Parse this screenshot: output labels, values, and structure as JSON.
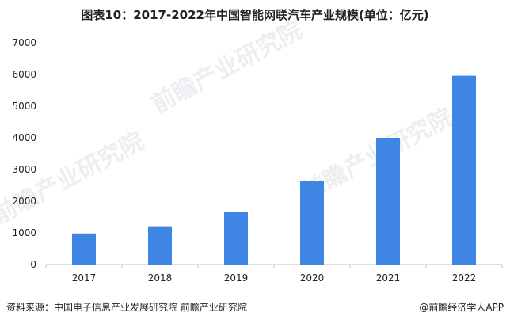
{
  "chart_data": {
    "type": "bar",
    "title": "图表10：2017-2022年中国智能网联汽车产业规模(单位：亿元)",
    "categories": [
      "2017",
      "2018",
      "2019",
      "2020",
      "2021",
      "2022"
    ],
    "values": [
      980,
      1210,
      1670,
      2630,
      4000,
      5960
    ],
    "ylim": [
      0,
      7000
    ],
    "yticks": [
      0,
      1000,
      2000,
      3000,
      4000,
      5000,
      6000,
      7000
    ],
    "xlabel": "",
    "ylabel": "",
    "grid": false,
    "bar_color": "#3f85e4"
  },
  "footer": {
    "source": "资料来源：中国电子信息产业发展研究院 前瞻产业研究院",
    "brand": "@前瞻经济学人APP"
  },
  "watermark": {
    "text": "前瞻产业研究院"
  }
}
